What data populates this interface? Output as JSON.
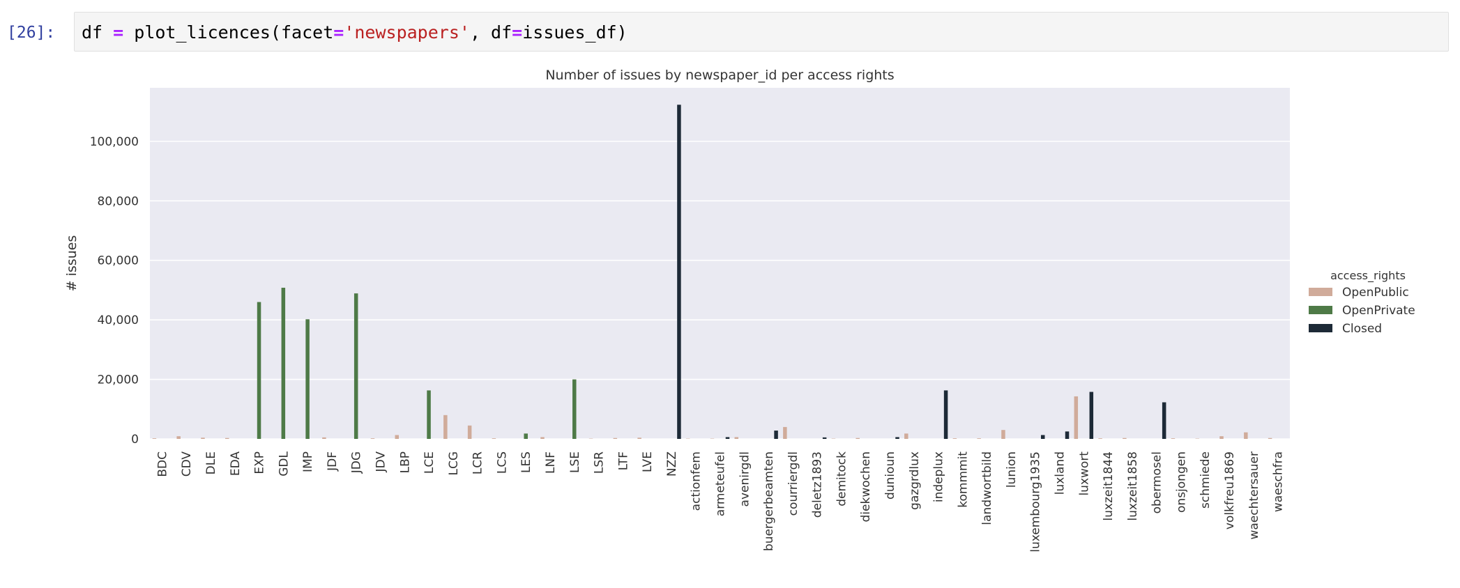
{
  "cell": {
    "prompt": "[26]:",
    "code_tokens": [
      {
        "t": "df ",
        "c": ""
      },
      {
        "t": "=",
        "c": "op"
      },
      {
        "t": " plot_licences(facet",
        "c": ""
      },
      {
        "t": "=",
        "c": "op"
      },
      {
        "t": "'newspapers'",
        "c": "str"
      },
      {
        "t": ", df",
        "c": ""
      },
      {
        "t": "=",
        "c": "op"
      },
      {
        "t": "issues_df)",
        "c": ""
      }
    ]
  },
  "colors": {
    "OpenPublic": "#d0ab9a",
    "OpenPrivate": "#4e7a47",
    "Closed": "#1d2a37",
    "plot_bg": "#eaeaf2",
    "grid": "#ffffff",
    "prompt": "#303f9f",
    "operator": "#aa22ff",
    "string": "#ba2121"
  },
  "chart_data": {
    "type": "bar",
    "title": "Number of issues by newspaper_id per access rights",
    "xlabel": "",
    "ylabel": "# issues",
    "ylim": [
      0,
      118000
    ],
    "yticks": [
      0,
      20000,
      40000,
      60000,
      80000,
      100000
    ],
    "ytick_labels": [
      "0",
      "20,000",
      "40,000",
      "60,000",
      "80,000",
      "100,000"
    ],
    "grid": true,
    "legend_title": "access_rights",
    "legend_position": "right",
    "categories": [
      "BDC",
      "CDV",
      "DLE",
      "EDA",
      "EXP",
      "GDL",
      "IMP",
      "JDF",
      "JDG",
      "JDV",
      "LBP",
      "LCE",
      "LCG",
      "LCR",
      "LCS",
      "LES",
      "LNF",
      "LSE",
      "LSR",
      "LTF",
      "LVE",
      "NZZ",
      "actionfem",
      "armeteufel",
      "avenirgdl",
      "buergerbeamten",
      "courriergdl",
      "deletz1893",
      "demitock",
      "diekwochen",
      "dunioun",
      "gazgrdlux",
      "indeplux",
      "kommmit",
      "landwortbild",
      "lunion",
      "luxembourg1935",
      "luxland",
      "luxwort",
      "luxzeit1844",
      "luxzeit1858",
      "obermosel",
      "onsjongen",
      "schmiede",
      "volkfreu1869",
      "waechtersauer",
      "waeschfra"
    ],
    "series": [
      {
        "name": "OpenPublic",
        "values": [
          200,
          900,
          400,
          300,
          0,
          0,
          0,
          500,
          0,
          200,
          1300,
          0,
          8000,
          4500,
          200,
          0,
          600,
          0,
          100,
          300,
          400,
          0,
          100,
          100,
          600,
          0,
          4000,
          0,
          100,
          300,
          0,
          1800,
          0,
          200,
          200,
          3000,
          0,
          0,
          14300,
          200,
          300,
          0,
          200,
          100,
          900,
          2200,
          300
        ]
      },
      {
        "name": "OpenPrivate",
        "values": [
          0,
          0,
          0,
          0,
          46000,
          50800,
          40200,
          0,
          48900,
          0,
          0,
          16300,
          0,
          0,
          0,
          1800,
          0,
          20000,
          0,
          0,
          0,
          0,
          0,
          0,
          0,
          0,
          0,
          0,
          0,
          0,
          0,
          0,
          0,
          0,
          0,
          0,
          0,
          0,
          0,
          0,
          0,
          0,
          0,
          0,
          0,
          0,
          0
        ]
      },
      {
        "name": "Closed",
        "values": [
          0,
          0,
          0,
          0,
          0,
          0,
          0,
          0,
          0,
          0,
          0,
          0,
          0,
          0,
          0,
          0,
          0,
          0,
          0,
          0,
          0,
          112300,
          0,
          600,
          0,
          2800,
          0,
          500,
          0,
          0,
          600,
          0,
          16300,
          0,
          0,
          0,
          1300,
          2500,
          15800,
          0,
          0,
          12300,
          0,
          0,
          0,
          0,
          0
        ]
      }
    ]
  }
}
